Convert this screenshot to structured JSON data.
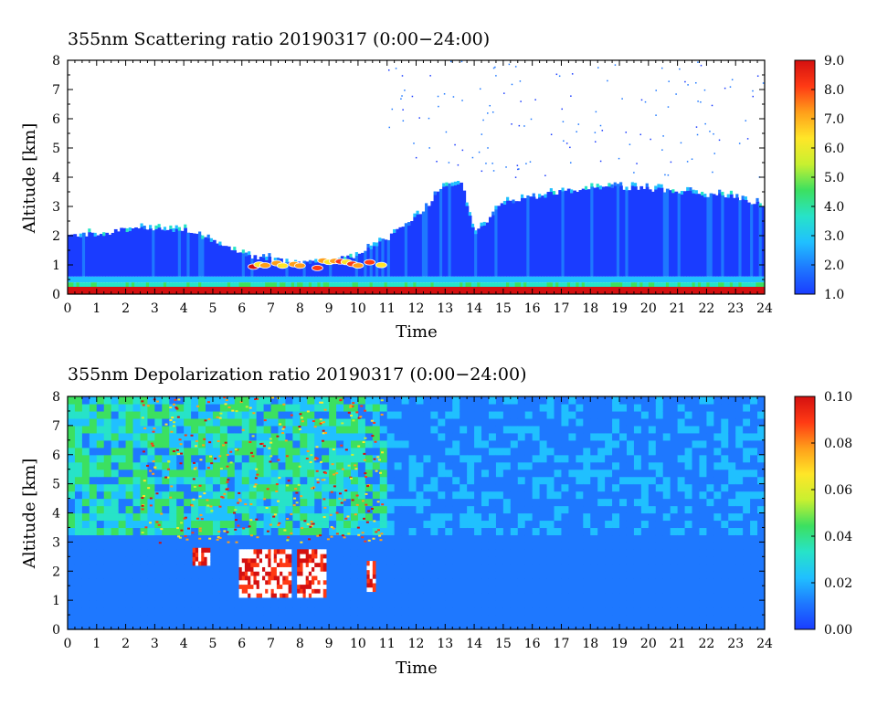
{
  "chart_data": [
    {
      "type": "heatmap",
      "title": "355nm Scattering ratio  20190317 (0:00−24:00)",
      "xlabel": "Time",
      "ylabel": "Altitude [km]",
      "xlim": [
        0,
        24
      ],
      "ylim": [
        0,
        8
      ],
      "x_ticks": [
        "0",
        "1",
        "2",
        "3",
        "4",
        "5",
        "6",
        "7",
        "8",
        "9",
        "10",
        "11",
        "12",
        "13",
        "14",
        "15",
        "16",
        "17",
        "18",
        "19",
        "20",
        "21",
        "22",
        "23",
        "24"
      ],
      "y_ticks": [
        "0",
        "1",
        "2",
        "3",
        "4",
        "5",
        "6",
        "7",
        "8"
      ],
      "colorbar": {
        "range": [
          1.0,
          9.0
        ],
        "ticks": [
          "1.0",
          "2.0",
          "3.0",
          "4.0",
          "5.0",
          "6.0",
          "7.0",
          "8.0",
          "9.0"
        ],
        "colors": [
          "#1a3cff",
          "#1e78ff",
          "#20c0ff",
          "#27e3c8",
          "#3ce060",
          "#c8f030",
          "#ffe628",
          "#ff9f1a",
          "#ff3a14",
          "#d41010"
        ]
      },
      "cloud_top_km": [
        [
          0,
          2.0
        ],
        [
          1,
          2.05
        ],
        [
          2,
          2.2
        ],
        [
          3,
          2.25
        ],
        [
          4,
          2.2
        ],
        [
          5,
          1.8
        ],
        [
          6,
          1.35
        ],
        [
          7,
          1.2
        ],
        [
          8,
          1.05
        ],
        [
          9,
          1.15
        ],
        [
          10,
          1.3
        ],
        [
          11,
          1.9
        ],
        [
          12,
          2.6
        ],
        [
          13,
          3.7
        ],
        [
          13.6,
          3.75
        ],
        [
          14,
          2.0
        ],
        [
          14.5,
          2.6
        ],
        [
          15,
          3.1
        ],
        [
          16,
          3.3
        ],
        [
          17,
          3.5
        ],
        [
          18,
          3.6
        ],
        [
          19,
          3.65
        ],
        [
          20,
          3.6
        ],
        [
          21,
          3.5
        ],
        [
          22,
          3.4
        ],
        [
          23,
          3.35
        ],
        [
          24,
          3.0
        ]
      ]
    },
    {
      "type": "heatmap",
      "title": "355nm Depolarization ratio  20190317 (0:00−24:00)",
      "xlabel": "Time",
      "ylabel": "Altitude [km]",
      "xlim": [
        0,
        24
      ],
      "ylim": [
        0,
        8
      ],
      "x_ticks": [
        "0",
        "1",
        "2",
        "3",
        "4",
        "5",
        "6",
        "7",
        "8",
        "9",
        "10",
        "11",
        "12",
        "13",
        "14",
        "15",
        "16",
        "17",
        "18",
        "19",
        "20",
        "21",
        "22",
        "23",
        "24"
      ],
      "y_ticks": [
        "0",
        "1",
        "2",
        "3",
        "4",
        "5",
        "6",
        "7",
        "8"
      ],
      "colorbar": {
        "range": [
          0.0,
          0.1
        ],
        "ticks": [
          "0.00",
          "0.02",
          "0.04",
          "0.06",
          "0.08",
          "0.10"
        ],
        "colors": [
          "#1a3cff",
          "#1e78ff",
          "#20c0ff",
          "#27e3c8",
          "#3ce060",
          "#c8f030",
          "#ffe628",
          "#ff9f1a",
          "#ff3a14",
          "#d41010"
        ]
      },
      "high_depol_regions": [
        {
          "t0": 4.3,
          "t1": 4.8,
          "z0": 2.2,
          "z1": 2.7
        },
        {
          "t0": 5.9,
          "t1": 7.6,
          "z0": 1.1,
          "z1": 2.6
        },
        {
          "t0": 7.9,
          "t1": 8.8,
          "z0": 1.1,
          "z1": 2.6
        },
        {
          "t0": 10.3,
          "t1": 10.6,
          "z0": 1.3,
          "z1": 2.2
        }
      ]
    }
  ]
}
